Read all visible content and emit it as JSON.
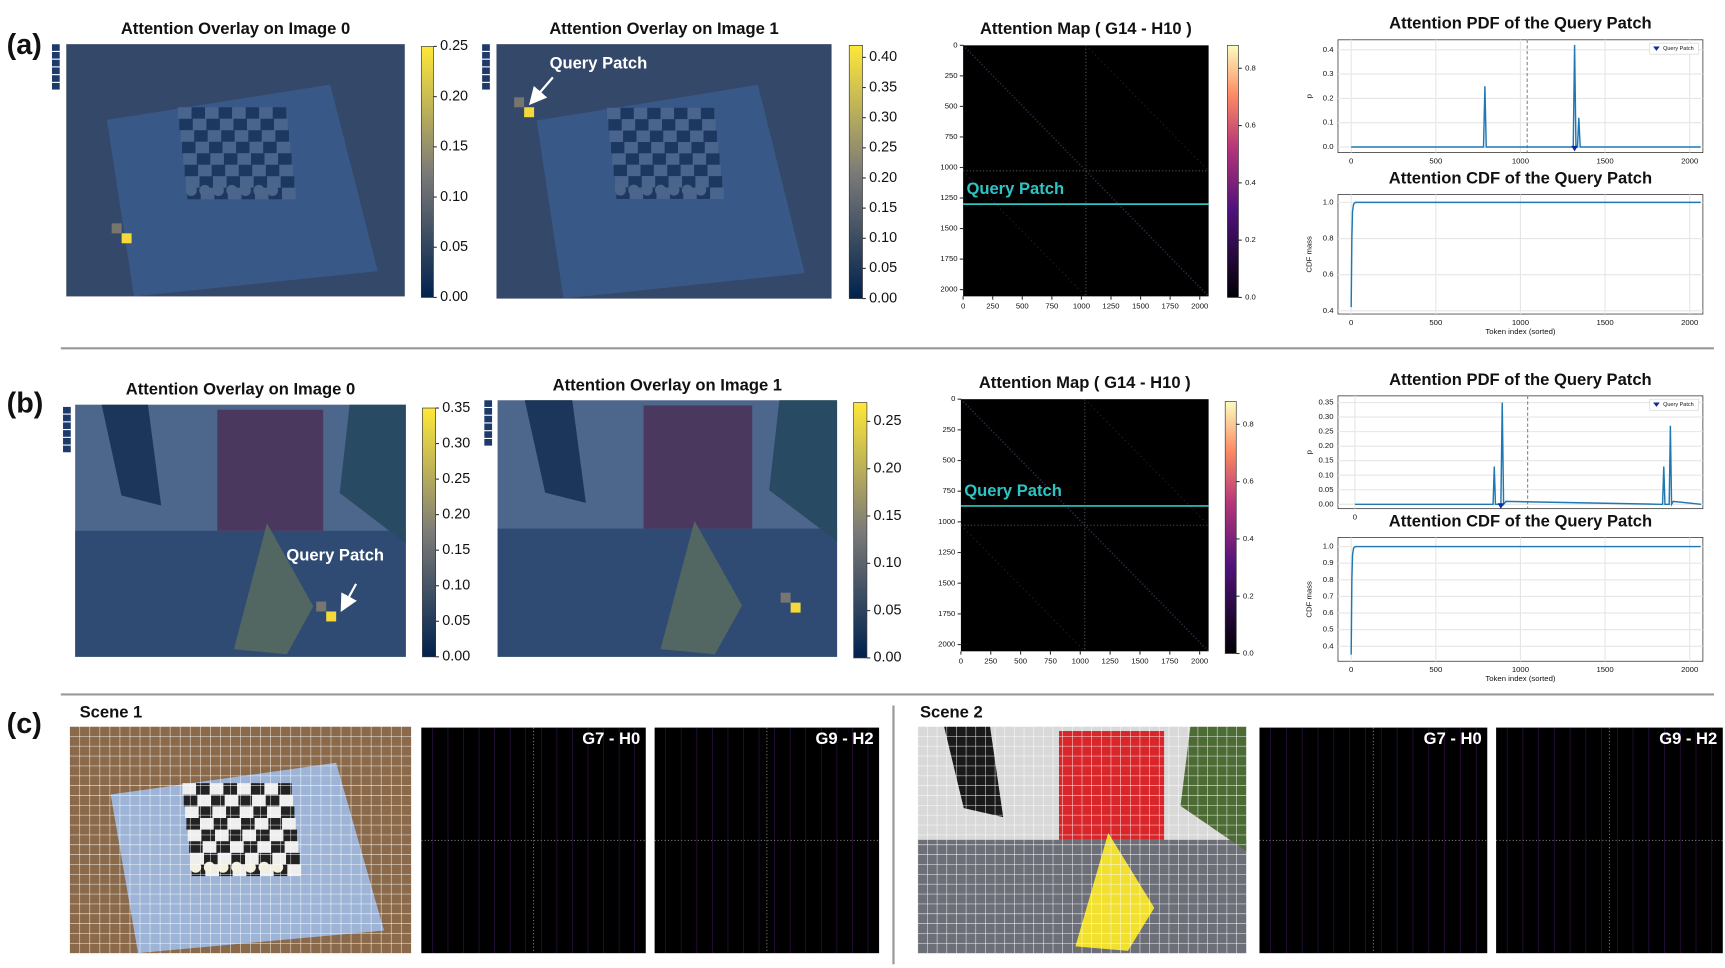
{
  "panel_labels": [
    "(a)",
    "(b)",
    "(c)"
  ],
  "chart_data": [
    {
      "type": "overlay",
      "title": "Attention Overlay on Image 0",
      "ylim": [
        0,
        0.25
      ],
      "yticks": [
        {
          "value": 0,
          "label": "0.00"
        },
        0.05,
        {
          "value": 0.1,
          "label": "0.10"
        },
        0.15,
        {
          "value": 0.2,
          "label": "0.20"
        },
        0.25
      ]
    },
    {
      "type": "overlay",
      "title": "Attention Overlay on Image 1",
      "annotation": "Query Patch",
      "ylim": [
        0,
        0.42
      ],
      "yticks": [
        {
          "value": 0,
          "label": "0.00"
        },
        0.05,
        {
          "value": 0.1,
          "label": "0.10"
        },
        0.15,
        {
          "value": 0.2,
          "label": "0.20"
        },
        0.25,
        {
          "value": 0.3,
          "label": "0.30"
        },
        0.35,
        {
          "value": 0.4,
          "label": "0.40"
        }
      ]
    },
    {
      "type": "heatmap",
      "title": "Attention Map ( G14 - H10 )",
      "annotation": "Query Patch",
      "query_row": 1300,
      "xlim": [
        0,
        2075
      ],
      "ylim": [
        0,
        2055
      ],
      "xticks": [
        0,
        250,
        500,
        750,
        1000,
        1250,
        1500,
        1750,
        2000
      ],
      "yticks": [
        0,
        250,
        500,
        750,
        1000,
        1250,
        1500,
        1750,
        2000
      ],
      "clim": [
        0,
        0.88
      ],
      "cticks": [
        {
          "value": 0,
          "label": "0.0"
        },
        0.2,
        0.4,
        0.6,
        0.8
      ]
    },
    {
      "type": "line",
      "title": "Attention PDF of the Query Patch",
      "ylabel": "p",
      "legend": "Query Patch",
      "color": "#1f77b4",
      "grid": true,
      "query_index": 1320,
      "split_index": 1040,
      "xlim": [
        -78,
        2078
      ],
      "ylim": [
        -0.023,
        0.441
      ],
      "xticks": [
        0,
        500,
        1000,
        1500,
        2000
      ],
      "yticks": [
        {
          "value": 0,
          "label": "0.0"
        },
        0.1,
        0.2,
        0.3,
        0.4
      ],
      "x": [
        0,
        782,
        790,
        798,
        1312,
        1320,
        1328,
        1337,
        1345,
        1353,
        2065
      ],
      "values": [
        0,
        0,
        0.25,
        0,
        0,
        0.42,
        0,
        0,
        0.12,
        0,
        0
      ]
    },
    {
      "type": "line",
      "title": "Attention CDF of the Query Patch",
      "ylabel": "CDF mass",
      "xlabel": "Token index (sorted)",
      "color": "#1f77b4",
      "grid": true,
      "xlim": [
        -78,
        2078
      ],
      "ylim": [
        0.382,
        1.043
      ],
      "xticks": [
        0,
        500,
        1000,
        1500,
        2000
      ],
      "yticks": [
        0.4,
        0.6,
        0.8,
        {
          "value": 1,
          "label": "1.0"
        }
      ],
      "x": [
        0,
        4,
        8,
        14,
        25,
        2065
      ],
      "values": [
        0.42,
        0.8,
        0.95,
        0.99,
        1,
        1
      ]
    },
    {
      "type": "overlay",
      "title": "Attention Overlay on Image 0",
      "annotation": "Query Patch",
      "ylim": [
        0,
        0.35
      ],
      "yticks": [
        {
          "value": 0,
          "label": "0.00"
        },
        0.05,
        {
          "value": 0.1,
          "label": "0.10"
        },
        0.15,
        {
          "value": 0.2,
          "label": "0.20"
        },
        0.25,
        {
          "value": 0.3,
          "label": "0.30"
        },
        0.35
      ]
    },
    {
      "type": "overlay",
      "title": "Attention Overlay on Image 1",
      "ylim": [
        0,
        0.27
      ],
      "yticks": [
        {
          "value": 0,
          "label": "0.00"
        },
        0.05,
        {
          "value": 0.1,
          "label": "0.10"
        },
        0.15,
        {
          "value": 0.2,
          "label": "0.20"
        },
        0.25
      ]
    },
    {
      "type": "heatmap",
      "title": "Attention Map ( G14 - H10 )",
      "annotation": "Query Patch",
      "query_row": 870,
      "xlim": [
        0,
        2075
      ],
      "ylim": [
        0,
        2055
      ],
      "xticks": [
        0,
        250,
        500,
        750,
        1000,
        1250,
        1500,
        1750,
        2000
      ],
      "yticks": [
        0,
        250,
        500,
        750,
        1000,
        1250,
        1500,
        1750,
        2000
      ],
      "clim": [
        0,
        0.88
      ],
      "cticks": [
        {
          "value": 0,
          "label": "0.0"
        },
        0.2,
        0.4,
        0.6,
        0.8
      ]
    },
    {
      "type": "line",
      "title": "Attention PDF of the Query Patch",
      "ylabel": "p",
      "legend": "Query Patch",
      "color": "#1f77b4",
      "grid": true,
      "query_index": 862,
      "split_index": 1020,
      "xlim": [
        -100,
        2055
      ],
      "ylim": [
        -0.015,
        0.373
      ],
      "xticks": [
        0
      ],
      "yticks": [
        {
          "value": 0,
          "label": "0.00"
        },
        0.05,
        {
          "value": 0.1,
          "label": "0.10"
        },
        0.15,
        {
          "value": 0.2,
          "label": "0.20"
        },
        0.25,
        {
          "value": 0.3,
          "label": "0.30"
        },
        0.35
      ],
      "x": [
        0,
        795,
        816,
        823,
        830,
        838,
        862,
        870,
        878,
        892,
        1800,
        1817,
        1824,
        1831,
        1856,
        1863,
        1870,
        1880,
        2045
      ],
      "values": [
        0,
        0,
        0,
        0.13,
        0,
        0,
        0,
        0.35,
        0,
        0.01,
        0,
        0,
        0.13,
        0,
        0,
        0.27,
        0,
        0.01,
        0
      ]
    },
    {
      "type": "line",
      "title": "Attention CDF of the Query Patch",
      "ylabel": "CDF mass",
      "xlabel": "Token index (sorted)",
      "color": "#1f77b4",
      "grid": true,
      "xlim": [
        -78,
        2078
      ],
      "ylim": [
        0.31,
        1.055
      ],
      "xticks": [
        0,
        500,
        1000,
        1500,
        2000
      ],
      "yticks": [
        0.4,
        0.5,
        0.6,
        0.7,
        0.8,
        0.9,
        {
          "value": 1,
          "label": "1.0"
        }
      ],
      "x": [
        0,
        4,
        8,
        14,
        25,
        2065
      ],
      "values": [
        0.35,
        0.8,
        0.95,
        0.99,
        1,
        1
      ]
    }
  ],
  "scenes": [
    {
      "title": "Scene 1",
      "heads": [
        "G7 - H0",
        "G9 - H2"
      ]
    },
    {
      "title": "Scene 2",
      "heads": [
        "G7 - H0",
        "G9 - H2"
      ]
    }
  ]
}
